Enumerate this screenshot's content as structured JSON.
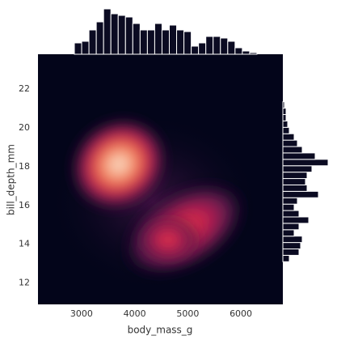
{
  "chart_data": {
    "type": "kde",
    "xlabel": "body_mass_g",
    "ylabel": "bill_depth_mm",
    "xlim": [
      2180,
      6790
    ],
    "ylim": [
      10.9,
      23.8
    ],
    "xticks": [
      3000,
      4000,
      5000,
      6000
    ],
    "yticks": [
      12,
      14,
      16,
      18,
      20,
      22
    ],
    "grid": false,
    "cmap_colors": [
      "#03051a",
      "#5c1a4f",
      "#c4204f",
      "#ef6a4c",
      "#f7b08c",
      "#fbeee0"
    ],
    "hist_color": "#0b0b22",
    "x_hist": {
      "bins": [
        2865,
        3002.5,
        3140,
        3277.5,
        3415,
        3552.5,
        3690,
        3827.5,
        3965,
        4102.5,
        4240,
        4377.5,
        4515,
        4652.5,
        4790,
        4927.5,
        5065,
        5202.5,
        5340,
        5477.5,
        5615,
        5752.5,
        5890,
        6027.5,
        6165,
        6302.5
      ],
      "counts": [
        7,
        8,
        15,
        20,
        28,
        25,
        24,
        23,
        19,
        15,
        15,
        19,
        15,
        18,
        15,
        14,
        5,
        7,
        11,
        11,
        10,
        8,
        4,
        2,
        1
      ]
    },
    "y_hist": {
      "bins": [
        13.1,
        13.43,
        13.76,
        14.09,
        14.42,
        14.75,
        15.08,
        15.41,
        15.74,
        16.07,
        16.4,
        16.73,
        17.06,
        17.39,
        17.72,
        18.05,
        18.38,
        18.71,
        19.04,
        19.37,
        19.7,
        20.03,
        20.36,
        20.69,
        21.02,
        21.35
      ],
      "counts": [
        4,
        10,
        11,
        12,
        7,
        10,
        16,
        10,
        7,
        9,
        22,
        15,
        14,
        15,
        18,
        28,
        20,
        12,
        9,
        7,
        4,
        3,
        2,
        2,
        1
      ]
    }
  }
}
